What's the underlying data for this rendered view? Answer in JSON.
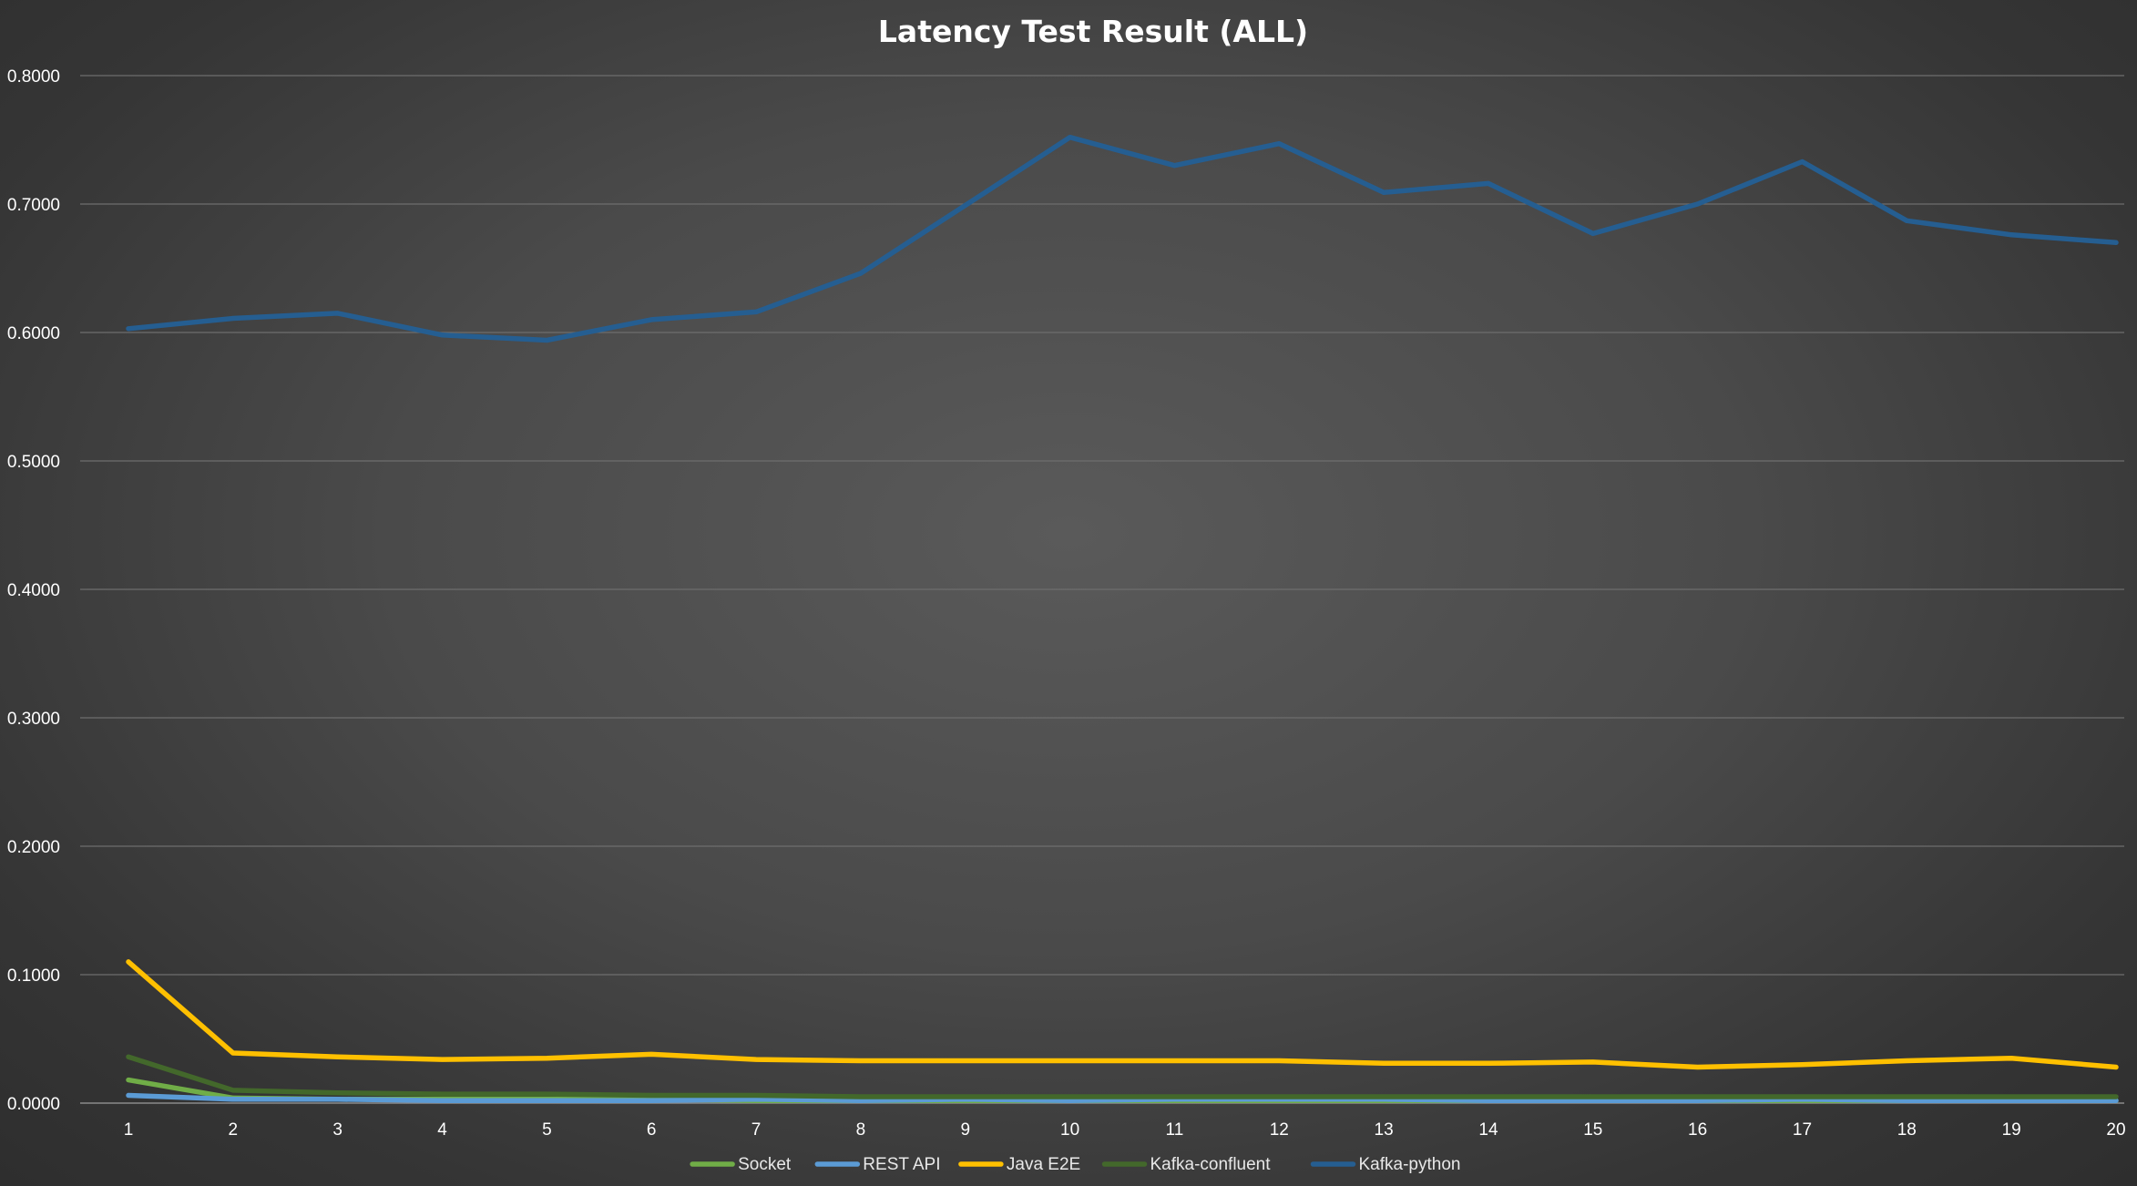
{
  "chart_data": {
    "type": "line",
    "title": "Latency Test Result (ALL)",
    "xlabel": "",
    "ylabel": "",
    "ylim": [
      0,
      0.8
    ],
    "y_ticks": [
      "0.0000",
      "0.1000",
      "0.2000",
      "0.3000",
      "0.4000",
      "0.5000",
      "0.6000",
      "0.7000",
      "0.8000"
    ],
    "y_tick_values": [
      0,
      0.1,
      0.2,
      0.3,
      0.4,
      0.5,
      0.6,
      0.7,
      0.8
    ],
    "x": [
      "1",
      "2",
      "3",
      "4",
      "5",
      "6",
      "7",
      "8",
      "9",
      "10",
      "11",
      "12",
      "13",
      "14",
      "15",
      "16",
      "17",
      "18",
      "19",
      "20"
    ],
    "grid": true,
    "legend_position": "bottom",
    "series": [
      {
        "name": "Socket",
        "color": "#70ad47",
        "values": [
          0.018,
          0.004,
          0.003,
          0.003,
          0.003,
          0.003,
          0.002,
          0.002,
          0.002,
          0.002,
          0.002,
          0.002,
          0.002,
          0.002,
          0.002,
          0.002,
          0.002,
          0.002,
          0.002,
          0.002
        ]
      },
      {
        "name": "REST API",
        "color": "#5b9bd5",
        "values": [
          0.006,
          0.003,
          0.003,
          0.002,
          0.002,
          0.002,
          0.003,
          0.002,
          0.003,
          0.002,
          0.003,
          0.003,
          0.003,
          0.002,
          0.002,
          0.002,
          0.003,
          0.002,
          0.002,
          0.002
        ]
      },
      {
        "name": "Java E2E",
        "color": "#ffc000",
        "values": [
          0.11,
          0.039,
          0.036,
          0.034,
          0.035,
          0.038,
          0.034,
          0.033,
          0.033,
          0.033,
          0.033,
          0.033,
          0.031,
          0.031,
          0.032,
          0.028,
          0.03,
          0.033,
          0.035,
          0.028
        ]
      },
      {
        "name": "Kafka-confluent",
        "color": "#43682b",
        "values": [
          0.036,
          0.01,
          0.008,
          0.007,
          0.007,
          0.006,
          0.006,
          0.005,
          0.005,
          0.005,
          0.005,
          0.005,
          0.005,
          0.005,
          0.005,
          0.005,
          0.005,
          0.005,
          0.005,
          0.005
        ]
      },
      {
        "name": "Kafka-python",
        "color": "#255e91",
        "values": [
          0.603,
          0.611,
          0.615,
          0.598,
          0.594,
          0.61,
          0.616,
          0.646,
          0.699,
          0.752,
          0.73,
          0.747,
          0.709,
          0.716,
          0.677,
          0.7,
          0.733,
          0.687,
          0.676,
          0.67
        ]
      }
    ]
  }
}
